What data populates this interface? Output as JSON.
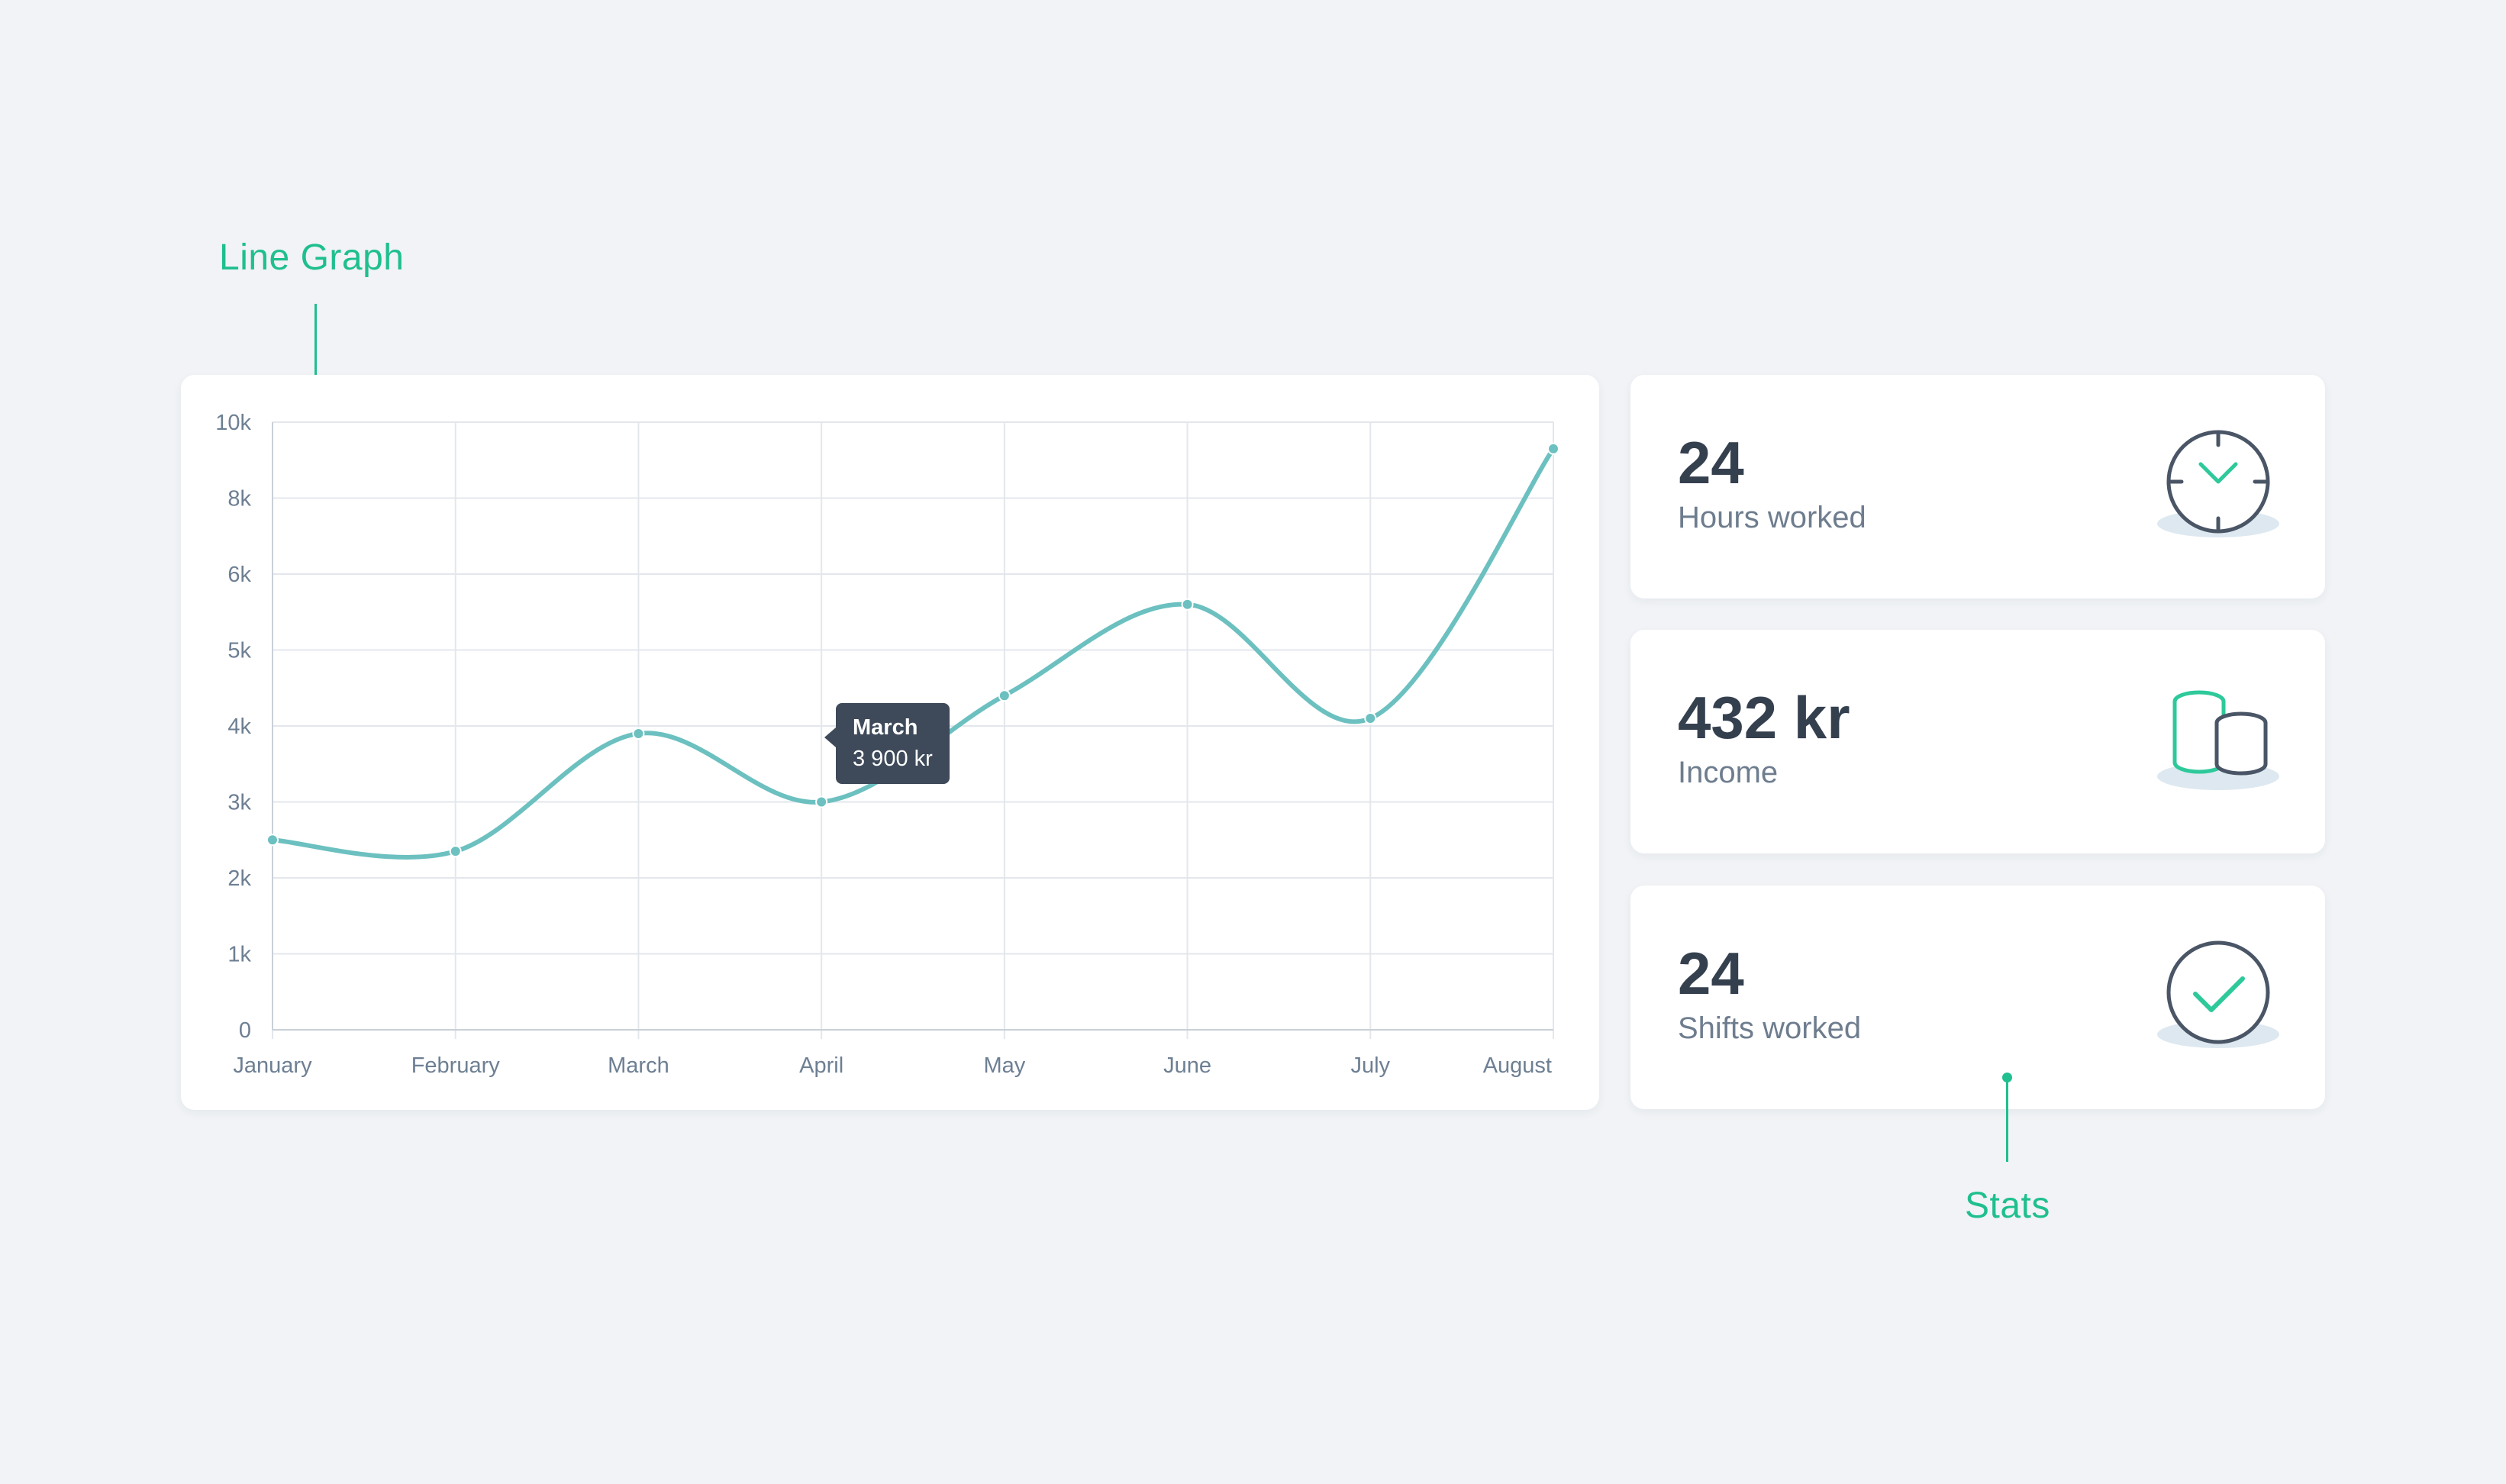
{
  "annotations": {
    "line_graph": "Line Graph",
    "stats": "Stats"
  },
  "colors": {
    "accent": "#1fbf8f",
    "line": "#6cc0c0",
    "text_dark": "#35404f",
    "text_muted": "#6e7d8e",
    "tooltip_bg": "#3e4a5a"
  },
  "chart_data": {
    "type": "line",
    "x": [
      "January",
      "February",
      "March",
      "April",
      "May",
      "June",
      "July",
      "August"
    ],
    "y_ticks": [
      "0",
      "1k",
      "2k",
      "3k",
      "4k",
      "5k",
      "6k",
      "8k",
      "10k"
    ],
    "series": [
      {
        "values": [
          2500,
          2350,
          3900,
          3000,
          4400,
          5600,
          4100,
          9300
        ]
      }
    ],
    "title": "",
    "xlabel": "",
    "ylabel": "",
    "grid": true,
    "tooltip": {
      "title": "March",
      "value": "3 900 kr"
    }
  },
  "stats": [
    {
      "value": "24",
      "label": "Hours worked",
      "icon": "clock-icon"
    },
    {
      "value": "432 kr",
      "label": "Income",
      "icon": "coins-icon"
    },
    {
      "value": "24",
      "label": "Shifts worked",
      "icon": "check-circle-icon"
    }
  ]
}
